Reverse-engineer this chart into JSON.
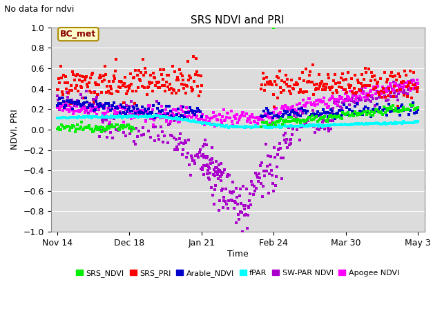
{
  "title": "SRS NDVI and PRI",
  "subtitle": "No data for ndvi",
  "ylabel": "NDVI, PRI",
  "xlabel": "Time",
  "annotation": "BC_met",
  "ylim": [
    -1.0,
    1.0
  ],
  "background_color": "#dcdcdc",
  "legend_labels": [
    "SRS_NDVI",
    "SRS_PRI",
    "Arable_NDVI",
    "fPAR",
    "SW-PAR NDVI",
    "Apogee NDVI"
  ],
  "legend_colors": [
    "#00ee00",
    "#ff0000",
    "#0000cc",
    "#00ffff",
    "#aa00cc",
    "#ff00ff"
  ],
  "xtick_labels": [
    "Nov 14",
    "Dec 18",
    "Jan 21",
    "Feb 24",
    "Mar 30",
    "May 3"
  ],
  "xtick_positions": [
    0,
    34,
    68,
    102,
    136,
    170
  ],
  "total_days": 170,
  "grid_color": "#ffffff",
  "title_fontsize": 11,
  "axis_fontsize": 9,
  "tick_fontsize": 9
}
